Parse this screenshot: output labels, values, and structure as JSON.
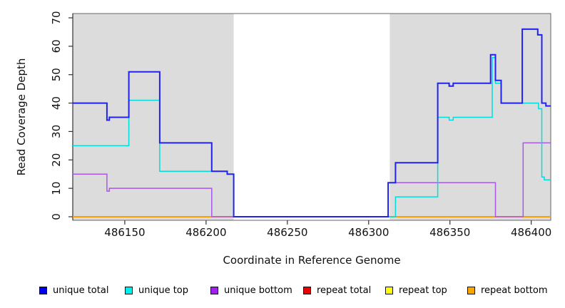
{
  "chart_data": {
    "type": "line",
    "subtype": "step-coverage-plot",
    "title": "",
    "xlabel": "Coordinate in Reference Genome",
    "ylabel": "Read Coverage Depth",
    "xlim": [
      486118,
      486412
    ],
    "ylim": [
      0,
      70
    ],
    "x_ticks": [
      486150,
      486200,
      486250,
      486300,
      486350,
      486400
    ],
    "y_ticks": [
      0,
      10,
      20,
      30,
      40,
      50,
      60,
      70
    ],
    "grid": false,
    "legend_position": "bottom",
    "shaded_regions": [
      {
        "name": "unique-region-left",
        "x0": 486118,
        "x1": 486217,
        "color": "#dcdcdc"
      },
      {
        "name": "unique-region-right",
        "x0": 486313,
        "x1": 486412,
        "color": "#dcdcdc"
      }
    ],
    "series": [
      {
        "name": "repeat total",
        "color": "#dd0000",
        "width": 1.2,
        "steps": [
          [
            486118,
            0
          ],
          [
            486412,
            0
          ]
        ]
      },
      {
        "name": "repeat top",
        "color": "#eeee00",
        "width": 1.2,
        "steps": [
          [
            486118,
            0
          ],
          [
            486412,
            0
          ]
        ]
      },
      {
        "name": "repeat bottom",
        "color": "#ff9d00",
        "width": 2,
        "steps": [
          [
            486118,
            0
          ],
          [
            486412,
            0
          ]
        ]
      },
      {
        "name": "unique bottom",
        "color": "#a858e8",
        "width": 1.5,
        "steps": [
          [
            486118,
            15
          ],
          [
            486139,
            9
          ],
          [
            486140.5,
            10
          ],
          [
            486203.5,
            0
          ],
          [
            486312,
            12
          ],
          [
            486378,
            0
          ],
          [
            486395,
            26
          ],
          [
            486412,
            26
          ]
        ]
      },
      {
        "name": "unique top",
        "color": "#00dddd",
        "width": 1.5,
        "steps": [
          [
            486118,
            25
          ],
          [
            486152.5,
            41
          ],
          [
            486171.5,
            16
          ],
          [
            486213,
            15
          ],
          [
            486217,
            0
          ],
          [
            486316.5,
            7
          ],
          [
            486342.5,
            35
          ],
          [
            486349.5,
            34
          ],
          [
            486352,
            35
          ],
          [
            486376,
            56
          ],
          [
            486378,
            47
          ],
          [
            486381.5,
            40
          ],
          [
            486404.5,
            38
          ],
          [
            486406.5,
            14
          ],
          [
            486408,
            13
          ],
          [
            486412,
            13
          ]
        ]
      },
      {
        "name": "unique total",
        "color": "#2222ee",
        "width": 2,
        "steps": [
          [
            486118,
            40
          ],
          [
            486139,
            34
          ],
          [
            486140.5,
            35
          ],
          [
            486152.5,
            51
          ],
          [
            486171.5,
            26
          ],
          [
            486203.5,
            16
          ],
          [
            486213,
            15
          ],
          [
            486217,
            0
          ],
          [
            486312,
            12
          ],
          [
            486316.5,
            19
          ],
          [
            486342.5,
            47
          ],
          [
            486349.5,
            46
          ],
          [
            486352,
            47
          ],
          [
            486375,
            57
          ],
          [
            486378,
            48
          ],
          [
            486381.5,
            40
          ],
          [
            486394.5,
            66
          ],
          [
            486404,
            64
          ],
          [
            486406.5,
            40
          ],
          [
            486409,
            39
          ],
          [
            486412,
            39
          ]
        ]
      }
    ]
  },
  "legend": {
    "items": [
      {
        "label": "unique total",
        "color": "#0000ee"
      },
      {
        "label": "unique top",
        "color": "#00eeee"
      },
      {
        "label": "unique bottom",
        "color": "#a020f0"
      },
      {
        "label": "repeat total",
        "color": "#ee0000"
      },
      {
        "label": "repeat top",
        "color": "#ffff00"
      },
      {
        "label": "repeat bottom",
        "color": "#ffa500"
      }
    ]
  }
}
